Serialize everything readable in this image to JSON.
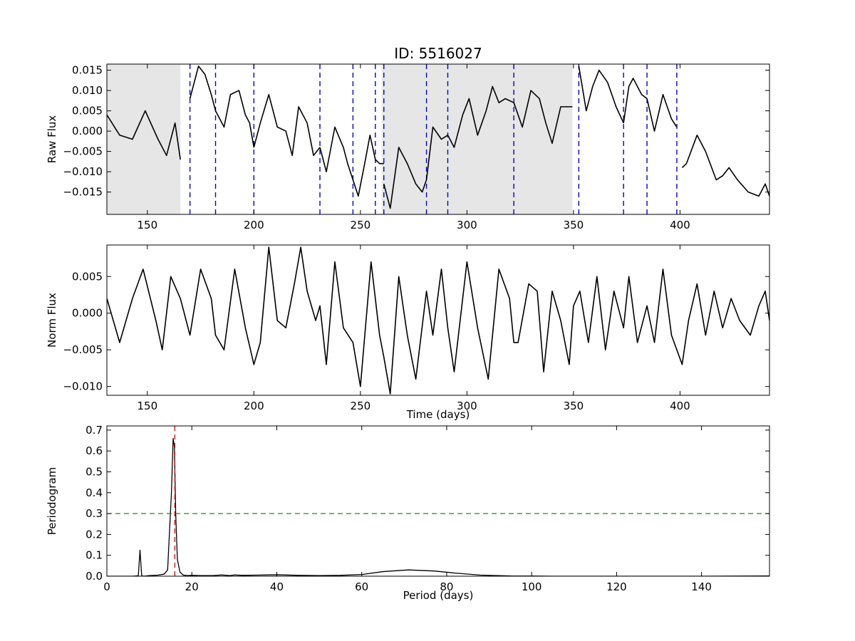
{
  "figure": {
    "title": "ID: 5516027"
  },
  "chart_data": [
    {
      "type": "line",
      "panel": "raw",
      "title": "ID: 5516027",
      "xlabel": "",
      "ylabel": "Raw Flux",
      "xlim": [
        131,
        442
      ],
      "ylim": [
        -0.0205,
        0.0165
      ],
      "xticks": [
        150,
        200,
        250,
        300,
        350,
        400
      ],
      "yticks": [
        0.015,
        0.01,
        0.005,
        0.0,
        -0.005,
        -0.01,
        -0.015
      ],
      "ytick_labels": [
        "0.015",
        "0.010",
        "0.005",
        "0.000",
        "−0.005",
        "−0.010",
        "−0.015"
      ],
      "grid": false,
      "shaded_regions": [
        [
          131,
          165.5
        ],
        [
          260,
          349.5
        ]
      ],
      "shade_color": "#e6e6e6",
      "quarter_boundaries": [
        170,
        182,
        200,
        231,
        246.5,
        257,
        261,
        281,
        291,
        322,
        352.5,
        373.5,
        384.5,
        398.5
      ],
      "boundary_color": "#0000cc",
      "segments": [
        {
          "x": [
            131,
            137,
            143,
            149,
            155,
            159,
            163,
            165.5
          ],
          "y": [
            0.004,
            -0.001,
            -0.002,
            0.005,
            -0.002,
            -0.006,
            0.002,
            -0.007
          ]
        },
        {
          "x": [
            170,
            174,
            177,
            180,
            182
          ],
          "y": [
            0.008,
            0.016,
            0.014,
            0.009,
            0.005
          ]
        },
        {
          "x": [
            182,
            186,
            189,
            193,
            196,
            198,
            200
          ],
          "y": [
            0.005,
            0.001,
            0.009,
            0.01,
            0.004,
            0.002,
            -0.004
          ]
        },
        {
          "x": [
            200,
            203,
            207,
            211,
            215,
            218,
            221,
            225,
            228,
            231
          ],
          "y": [
            -0.004,
            0.002,
            0.009,
            0.001,
            0.0,
            -0.006,
            0.006,
            0.002,
            -0.006,
            -0.004
          ]
        },
        {
          "x": [
            231,
            234,
            238,
            242,
            244,
            246.5
          ],
          "y": [
            -0.004,
            -0.01,
            0.001,
            -0.004,
            -0.008,
            -0.012
          ]
        },
        {
          "x": [
            246.5,
            249,
            252,
            254.5,
            257
          ],
          "y": [
            -0.012,
            -0.016,
            -0.008,
            -0.001,
            -0.007
          ]
        },
        {
          "x": [
            257,
            259,
            261
          ],
          "y": [
            -0.007,
            -0.008,
            -0.008
          ]
        },
        {
          "x": [
            261,
            264,
            268,
            272,
            276,
            279,
            281
          ],
          "y": [
            -0.013,
            -0.019,
            -0.004,
            -0.008,
            -0.013,
            -0.015,
            -0.012
          ]
        },
        {
          "x": [
            281,
            284,
            288,
            291
          ],
          "y": [
            -0.012,
            0.001,
            -0.002,
            -0.001
          ]
        },
        {
          "x": [
            291,
            294,
            298,
            301,
            305,
            309,
            312,
            315,
            318,
            322
          ],
          "y": [
            -0.001,
            -0.004,
            0.004,
            0.008,
            -0.001,
            0.005,
            0.011,
            0.007,
            0.008,
            0.007
          ]
        },
        {
          "x": [
            322,
            326,
            330,
            334,
            337,
            340,
            344,
            348,
            349.5
          ],
          "y": [
            0.007,
            0.001,
            0.01,
            0.008,
            0.002,
            -0.003,
            0.006,
            0.006,
            0.006
          ]
        },
        {
          "x": [
            352.5,
            356,
            359,
            362,
            366,
            370,
            373.5
          ],
          "y": [
            0.016,
            0.005,
            0.011,
            0.015,
            0.012,
            0.006,
            0.002
          ]
        },
        {
          "x": [
            373.5,
            376,
            378,
            382,
            384.5
          ],
          "y": [
            0.002,
            0.011,
            0.013,
            0.009,
            0.008
          ]
        },
        {
          "x": [
            384.5,
            388,
            392,
            396,
            398.5
          ],
          "y": [
            0.008,
            0.0,
            0.009,
            0.003,
            0.001
          ]
        },
        {
          "x": [
            401,
            403,
            408,
            412,
            417,
            420,
            423,
            427,
            432,
            437,
            440,
            442
          ],
          "y": [
            -0.009,
            -0.008,
            -0.001,
            -0.005,
            -0.012,
            -0.011,
            -0.009,
            -0.012,
            -0.015,
            -0.016,
            -0.013,
            -0.016
          ]
        }
      ]
    },
    {
      "type": "line",
      "panel": "norm",
      "xlabel": "Time (days)",
      "ylabel": "Norm Flux",
      "xlim": [
        131,
        442
      ],
      "ylim": [
        -0.0112,
        0.0093
      ],
      "xticks": [
        150,
        200,
        250,
        300,
        350,
        400
      ],
      "yticks": [
        0.005,
        0.0,
        -0.005,
        -0.01
      ],
      "ytick_labels": [
        "0.005",
        "0.000",
        "−0.005",
        "−0.010"
      ],
      "grid": false,
      "x": [
        131,
        137,
        143,
        148,
        154,
        157,
        161,
        165.5,
        170,
        175,
        180,
        182,
        186,
        191,
        196,
        200,
        203,
        207,
        211,
        215,
        219,
        222,
        225,
        229,
        231,
        234,
        238,
        242,
        246.5,
        250,
        255,
        259,
        261,
        264,
        268,
        272,
        276,
        281,
        284,
        288,
        291,
        294,
        300,
        305,
        310,
        315,
        320,
        322,
        324,
        329,
        333,
        336,
        340,
        344,
        348,
        350,
        353,
        357,
        361,
        365,
        369,
        373.5,
        376,
        380,
        384.5,
        388,
        392,
        396,
        401,
        404,
        408,
        412,
        416,
        420,
        424,
        428,
        433,
        437,
        440,
        442
      ],
      "y": [
        0.002,
        -0.004,
        0.002,
        0.006,
        -0.001,
        -0.005,
        0.005,
        0.002,
        -0.003,
        0.006,
        0.002,
        -0.003,
        -0.005,
        0.006,
        -0.002,
        -0.007,
        -0.004,
        0.009,
        -0.001,
        -0.002,
        0.004,
        0.009,
        0.003,
        -0.001,
        0.001,
        -0.007,
        0.007,
        -0.002,
        -0.004,
        -0.01,
        0.007,
        -0.003,
        -0.006,
        -0.011,
        0.005,
        -0.003,
        -0.009,
        0.003,
        -0.003,
        0.006,
        -0.002,
        -0.008,
        0.007,
        -0.002,
        -0.009,
        0.006,
        0.002,
        -0.004,
        -0.004,
        0.004,
        0.003,
        -0.008,
        0.003,
        -0.001,
        -0.007,
        0.001,
        0.003,
        -0.004,
        0.005,
        -0.005,
        0.003,
        -0.002,
        0.005,
        -0.004,
        0.001,
        -0.004,
        0.006,
        -0.003,
        -0.007,
        -0.001,
        0.004,
        -0.003,
        0.003,
        -0.002,
        0.002,
        -0.001,
        -0.003,
        0.001,
        0.003,
        -0.001
      ]
    },
    {
      "type": "line",
      "panel": "periodogram",
      "xlabel": "Period (days)",
      "ylabel": "Periodogram",
      "xlim": [
        0,
        156
      ],
      "ylim": [
        0,
        0.72
      ],
      "xticks": [
        0,
        20,
        40,
        60,
        80,
        100,
        120,
        140
      ],
      "yticks": [
        0.0,
        0.1,
        0.2,
        0.3,
        0.4,
        0.5,
        0.6,
        0.7
      ],
      "ytick_labels": [
        "0.0",
        "0.1",
        "0.2",
        "0.3",
        "0.4",
        "0.5",
        "0.6",
        "0.7"
      ],
      "grid": false,
      "x": [
        0,
        6,
        7.4,
        7.8,
        8.2,
        8.7,
        10,
        12,
        13.5,
        14.3,
        15.2,
        15.6,
        15.9,
        16.2,
        16.6,
        17.2,
        18,
        19,
        20,
        22,
        25,
        27,
        29,
        30,
        32,
        35,
        40,
        45,
        50,
        55,
        60,
        65,
        71,
        77,
        82,
        88,
        95,
        105,
        120,
        140,
        156
      ],
      "y": [
        0,
        0,
        0.002,
        0.125,
        0.002,
        0,
        0.003,
        0.005,
        0.01,
        0.03,
        0.4,
        0.66,
        0.62,
        0.3,
        0.08,
        0.02,
        0.005,
        0.003,
        0.004,
        0.003,
        0.003,
        0.006,
        0.003,
        0.006,
        0.004,
        0.005,
        0.007,
        0.004,
        0.003,
        0.004,
        0.008,
        0.022,
        0.03,
        0.025,
        0.015,
        0.005,
        0.001,
        0,
        0,
        0,
        0.001
      ],
      "threshold": 0.3,
      "threshold_color": "#008000",
      "detected_period": 16,
      "detected_color": "#e00000"
    }
  ]
}
